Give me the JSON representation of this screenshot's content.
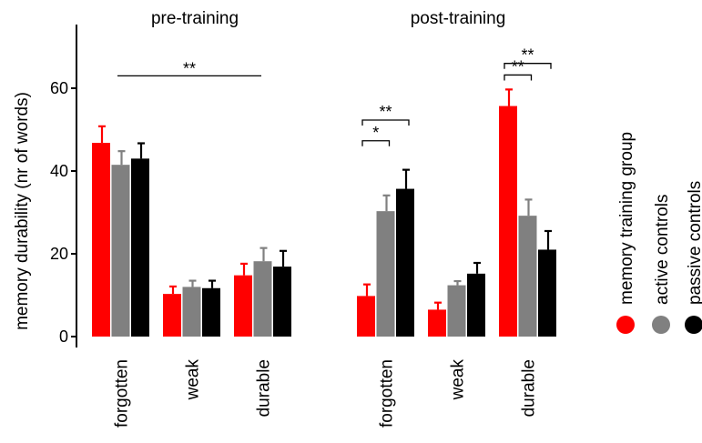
{
  "chart_data": {
    "type": "bar",
    "ylabel": "memory durability (nr of words)",
    "ylim": [
      0,
      75
    ],
    "yticks": [
      0,
      20,
      40,
      60
    ],
    "categories": [
      "forgotten",
      "weak",
      "durable"
    ],
    "series_names": [
      "memory training group",
      "active controls",
      "passive controls"
    ],
    "colors": [
      "#ff0000",
      "#808080",
      "#000000"
    ],
    "panels": [
      {
        "title": "pre-training",
        "series": [
          {
            "name": "memory training group",
            "values": [
              46.8,
              10.3,
              14.8
            ],
            "errors": [
              4.0,
              1.8,
              2.8
            ]
          },
          {
            "name": "active controls",
            "values": [
              41.5,
              12.0,
              18.2
            ],
            "errors": [
              3.3,
              1.5,
              3.2
            ]
          },
          {
            "name": "passive controls",
            "values": [
              43.0,
              11.7,
              16.9
            ],
            "errors": [
              3.7,
              1.8,
              3.8
            ]
          }
        ],
        "significance": [
          {
            "label": "**",
            "from": {
              "category": 0,
              "series": 0
            },
            "to": {
              "category": 2,
              "series": 0
            },
            "level": 63,
            "style": "line"
          }
        ]
      },
      {
        "title": "post-training",
        "series": [
          {
            "name": "memory training group",
            "values": [
              9.8,
              6.5,
              55.7
            ],
            "errors": [
              2.8,
              1.7,
              4.0
            ]
          },
          {
            "name": "active controls",
            "values": [
              30.3,
              12.4,
              29.2
            ],
            "errors": [
              3.8,
              1.0,
              3.9
            ]
          },
          {
            "name": "passive controls",
            "values": [
              35.7,
              15.2,
              21.0
            ],
            "errors": [
              4.6,
              2.6,
              4.5
            ]
          }
        ],
        "significance": [
          {
            "label": "*",
            "from": {
              "category": 0,
              "series": 0
            },
            "to": {
              "category": 0,
              "series": 1
            },
            "level": 47.3,
            "style": "bracket"
          },
          {
            "label": "**",
            "from": {
              "category": 0,
              "series": 0
            },
            "to": {
              "category": 0,
              "series": 2
            },
            "level": 52.3,
            "style": "bracket"
          },
          {
            "label": "**",
            "from": {
              "category": 2,
              "series": 0
            },
            "to": {
              "category": 2,
              "series": 1
            },
            "level": 63.2,
            "style": "bracket"
          },
          {
            "label": "**",
            "from": {
              "category": 2,
              "series": 0
            },
            "to": {
              "category": 2,
              "series": 2
            },
            "level": 66.0,
            "style": "bracket"
          }
        ]
      }
    ],
    "legend": {
      "position": "right",
      "orientation": "vertical"
    }
  }
}
